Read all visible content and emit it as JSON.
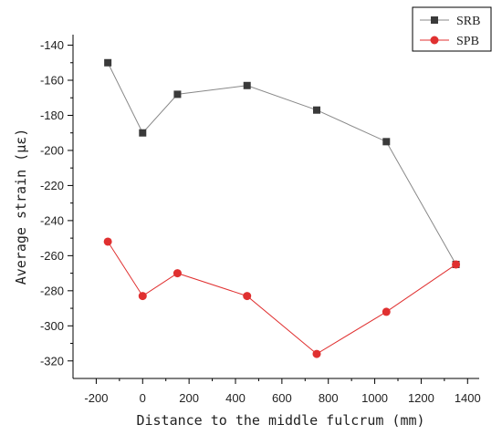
{
  "chart_data": {
    "type": "line",
    "title": "",
    "xlabel": "Distance to the middle fulcrum (mm)",
    "ylabel": "Average strain (με)",
    "xlim": [
      -300,
      1450
    ],
    "ylim": [
      -330,
      -134
    ],
    "xticks": [
      -200,
      0,
      200,
      400,
      600,
      800,
      1000,
      1200,
      1400
    ],
    "yticks": [
      -140,
      -160,
      -180,
      -200,
      -220,
      -240,
      -260,
      -280,
      -300,
      -320
    ],
    "grid": false,
    "legend": "top-right",
    "x": [
      -150,
      0,
      150,
      450,
      750,
      1050,
      1350
    ],
    "series": [
      {
        "name": "SRB",
        "marker": "square",
        "color": "#3a3a3a",
        "line_color": "#888888",
        "values": [
          -150,
          -190,
          -168,
          -163,
          -177,
          -195,
          -265
        ]
      },
      {
        "name": "SPB",
        "marker": "circle",
        "color": "#e03030",
        "line_color": "#e03030",
        "values": [
          -252,
          -283,
          -270,
          -283,
          -316,
          -292,
          -265
        ]
      }
    ]
  }
}
